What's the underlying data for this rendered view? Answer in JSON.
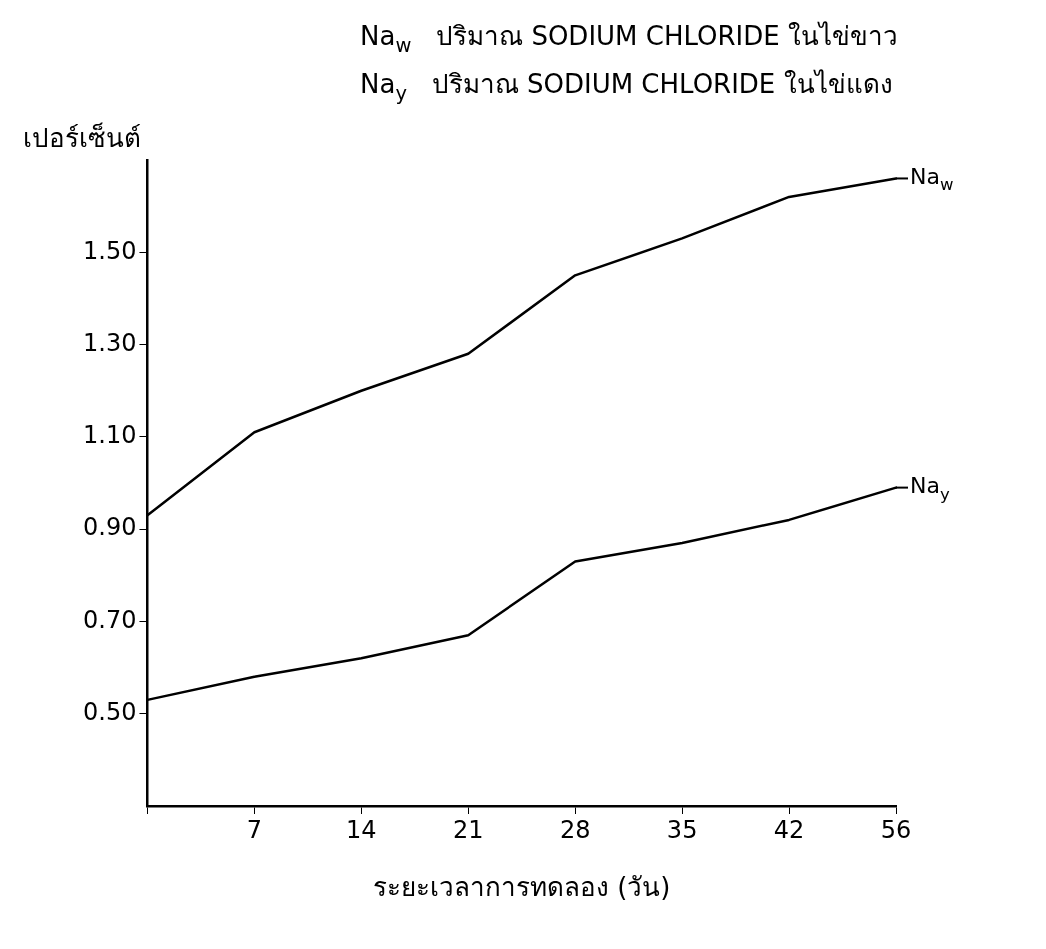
{
  "chart_data": {
    "type": "line",
    "xlabel": "ระยะเวลาการทดลอง (วัน)",
    "ylabel": "เปอร์เซ็นต์",
    "annotations": [
      "Na$_{w}$   ปริมาณ SODIUM CHLORIDE ในไข่ขาว",
      "Na$_{y}$   ปริมาณ SODIUM CHLORIDE ในไข่แดง"
    ],
    "categories": [
      null,
      "7",
      "14",
      "21",
      "28",
      "35",
      "42",
      "56"
    ],
    "series": [
      {
        "name": "Na$_{w}$",
        "color": "#000000",
        "values": [
          0.93,
          1.11,
          1.2,
          1.28,
          1.45,
          1.53,
          1.62,
          1.66
        ]
      },
      {
        "name": "Na$_{y}$",
        "color": "#000000",
        "values": [
          0.53,
          0.58,
          0.62,
          0.67,
          0.83,
          0.87,
          0.92,
          0.99
        ]
      }
    ],
    "ylim": [
      0.3,
      1.7
    ],
    "yticks": [
      {
        "value": 0.5,
        "label": "0.50"
      },
      {
        "value": 0.7,
        "label": "0.70"
      },
      {
        "value": 0.9,
        "label": "0.90"
      },
      {
        "value": 1.1,
        "label": "1.10"
      },
      {
        "value": 1.3,
        "label": "1.30"
      },
      {
        "value": 1.5,
        "label": "1.50"
      }
    ],
    "grid": false,
    "legend": "right",
    "marker": "none",
    "line_style": "solid"
  }
}
